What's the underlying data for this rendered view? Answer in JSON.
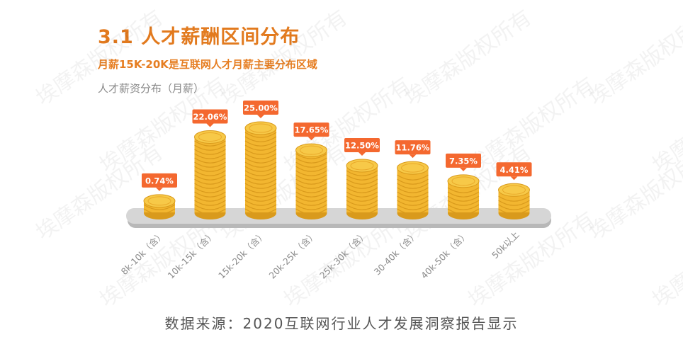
{
  "header": {
    "title": "3.1 人才薪酬区间分布",
    "subtitle": "月薪15K-20K是互联网人才月薪主要分布区域",
    "chart_label": "人才薪资分布（月薪）"
  },
  "footer": {
    "source": "数据来源：2020互联网行业人才发展洞察报告显示"
  },
  "watermark": {
    "text": "埃摩森版权所有"
  },
  "colors": {
    "accent": "#e8862a",
    "coin_body": "#f2b630",
    "coin_top": "#f7c948",
    "coin_shadow": "#d99a1c",
    "platform": "#c8c8c8",
    "label_bg": "#f4682f"
  },
  "chart_data": {
    "type": "bar",
    "style": "coin-stacks",
    "title": "人才薪资分布（月薪）",
    "categories": [
      "8k-10k（含）",
      "10k-15k（含）",
      "15k-20k（含）",
      "20k-25k（含）",
      "25k-30k（含）",
      "30-40k（含）",
      "40k-50k（含）",
      "50k以上"
    ],
    "values": [
      0.74,
      22.06,
      25.0,
      17.65,
      12.5,
      11.76,
      7.35,
      4.41
    ],
    "value_labels": [
      "0.74%",
      "22.06%",
      "25.00%",
      "17.65%",
      "12.50%",
      "11.76%",
      "7.35%",
      "4.41%"
    ],
    "unit": "%",
    "ylim": [
      0,
      25
    ],
    "grid": false,
    "legend": "none"
  }
}
